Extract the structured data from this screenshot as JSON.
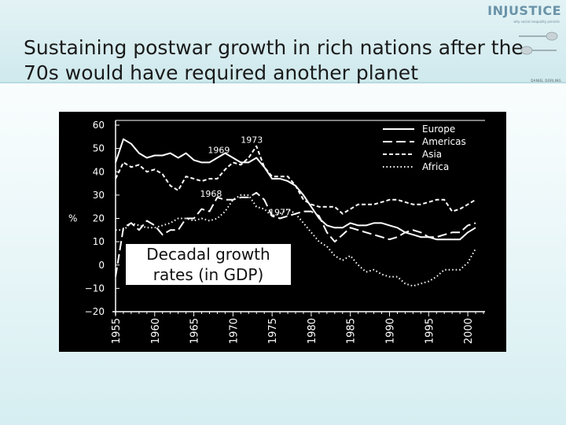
{
  "slide": {
    "title_line1": "Sustaining postwar growth in rich nations after the",
    "title_line2": "70s would have required another planet"
  },
  "brand": {
    "name": "INJUSTICE",
    "tagline": "why social inequality persists",
    "author": "DANIEL DORLING"
  },
  "note": {
    "line1": "Decadal growth",
    "line2": "rates (in GDP)"
  },
  "chart_data": {
    "type": "line",
    "title": "",
    "xlabel": "",
    "ylabel": "%",
    "xlim": [
      1955,
      2002
    ],
    "ylim": [
      -20,
      60
    ],
    "x_ticks": [
      "1955",
      "1960",
      "1965",
      "1970",
      "1975",
      "1980",
      "1985",
      "1990",
      "1995",
      "2000"
    ],
    "y_ticks": [
      "60",
      "50",
      "40",
      "30",
      "20",
      "10",
      "0",
      "−10",
      "−20"
    ],
    "legend_position": "top-right",
    "annotations": [
      {
        "label": "1969",
        "x": 1969,
        "y": 46
      },
      {
        "label": "1973",
        "x": 1973,
        "y": 51
      },
      {
        "label": "1968",
        "x": 1968,
        "y": 30
      },
      {
        "label": "1977",
        "x": 1977,
        "y": 22
      }
    ],
    "series": [
      {
        "name": "Europe",
        "style": "solid",
        "x": [
          1955,
          1956,
          1957,
          1958,
          1959,
          1960,
          1961,
          1962,
          1963,
          1964,
          1965,
          1966,
          1967,
          1968,
          1969,
          1970,
          1971,
          1972,
          1973,
          1974,
          1975,
          1976,
          1977,
          1978,
          1979,
          1980,
          1981,
          1982,
          1983,
          1984,
          1985,
          1986,
          1987,
          1988,
          1989,
          1990,
          1991,
          1992,
          1993,
          1994,
          1995,
          1996,
          1997,
          1998,
          1999,
          2000,
          2001
        ],
        "y": [
          44,
          54,
          52,
          48,
          46,
          47,
          47,
          48,
          46,
          48,
          45,
          44,
          44,
          46,
          48,
          46,
          44,
          44,
          46,
          42,
          37,
          37,
          36,
          34,
          30,
          25,
          20,
          17,
          16,
          16,
          18,
          17,
          17,
          18,
          18,
          17,
          16,
          14,
          13,
          12,
          12,
          11,
          11,
          11,
          11,
          14,
          16
        ]
      },
      {
        "name": "Americas",
        "style": "dashed",
        "x": [
          1955,
          1956,
          1957,
          1958,
          1959,
          1960,
          1961,
          1962,
          1963,
          1964,
          1965,
          1966,
          1967,
          1968,
          1969,
          1970,
          1971,
          1972,
          1973,
          1974,
          1975,
          1976,
          1977,
          1978,
          1979,
          1980,
          1981,
          1982,
          1983,
          1984,
          1985,
          1986,
          1987,
          1988,
          1989,
          1990,
          1991,
          1992,
          1993,
          1994,
          1995,
          1996,
          1997,
          1998,
          1999,
          2000,
          2001
        ],
        "y": [
          -5,
          16,
          18,
          15,
          19,
          17,
          13,
          15,
          15,
          20,
          20,
          24,
          23,
          29,
          28,
          28,
          29,
          29,
          31,
          28,
          21,
          20,
          21,
          22,
          23,
          23,
          21,
          14,
          10,
          13,
          16,
          15,
          14,
          13,
          12,
          11,
          12,
          14,
          15,
          14,
          12,
          12,
          13,
          14,
          14,
          17,
          18
        ]
      },
      {
        "name": "Asia",
        "style": "short-dashed",
        "x": [
          1955,
          1956,
          1957,
          1958,
          1959,
          1960,
          1961,
          1962,
          1963,
          1964,
          1965,
          1966,
          1967,
          1968,
          1969,
          1970,
          1971,
          1972,
          1973,
          1974,
          1975,
          1976,
          1977,
          1978,
          1979,
          1980,
          1981,
          1982,
          1983,
          1984,
          1985,
          1986,
          1987,
          1988,
          1989,
          1990,
          1991,
          1992,
          1993,
          1994,
          1995,
          1996,
          1997,
          1998,
          1999,
          2000,
          2001
        ],
        "y": [
          37,
          44,
          42,
          43,
          40,
          41,
          39,
          34,
          32,
          38,
          37,
          36,
          37,
          37,
          41,
          44,
          43,
          46,
          51,
          42,
          38,
          38,
          38,
          34,
          28,
          26,
          25,
          25,
          25,
          22,
          24,
          26,
          26,
          26,
          27,
          28,
          28,
          27,
          26,
          26,
          27,
          28,
          28,
          23,
          24,
          26,
          28
        ]
      },
      {
        "name": "Africa",
        "style": "dotted",
        "x": [
          1955,
          1956,
          1957,
          1958,
          1959,
          1960,
          1961,
          1962,
          1963,
          1964,
          1965,
          1966,
          1967,
          1968,
          1969,
          1970,
          1971,
          1972,
          1973,
          1974,
          1975,
          1976,
          1977,
          1978,
          1979,
          1980,
          1981,
          1982,
          1983,
          1984,
          1985,
          1986,
          1987,
          1988,
          1989,
          1990,
          1991,
          1992,
          1993,
          1994,
          1995,
          1996,
          1997,
          1998,
          1999,
          2000,
          2001
        ],
        "y": [
          15,
          15,
          18,
          17,
          16,
          16,
          17,
          18,
          20,
          20,
          19,
          20,
          19,
          20,
          23,
          28,
          30,
          30,
          25,
          24,
          21,
          22,
          24,
          22,
          18,
          14,
          10,
          8,
          4,
          2,
          4,
          0,
          -3,
          -2,
          -4,
          -5,
          -5,
          -8,
          -9,
          -8,
          -7,
          -5,
          -2,
          -2,
          -2,
          1,
          7
        ]
      }
    ]
  }
}
